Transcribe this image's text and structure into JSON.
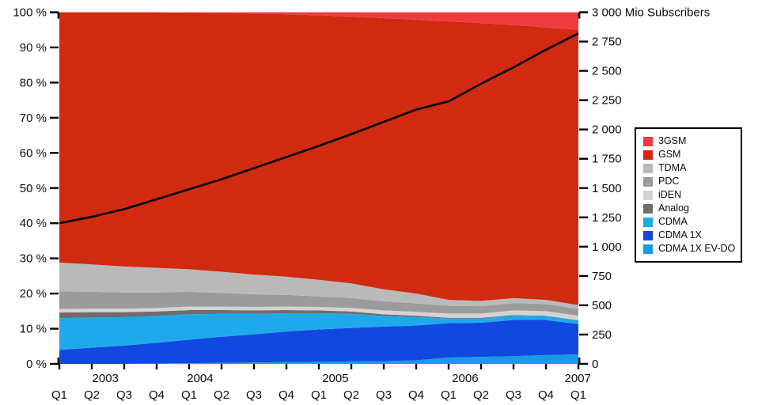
{
  "chart_data": {
    "type": "area",
    "stacked": true,
    "title": "",
    "x_quarter_labels": [
      "Q1",
      "Q2",
      "Q3",
      "Q4",
      "Q1",
      "Q2",
      "Q3",
      "Q4",
      "Q1",
      "Q2",
      "Q3",
      "Q4",
      "Q1",
      "Q2",
      "Q3",
      "Q4",
      "Q1"
    ],
    "x_year_labels": [
      {
        "label": "2003",
        "q": 1.42
      },
      {
        "label": "2004",
        "q": 4.34
      },
      {
        "label": "2005",
        "q": 8.51
      },
      {
        "label": "2006",
        "q": 12.51
      },
      {
        "label": "2007",
        "q": 15.98
      }
    ],
    "left_axis": {
      "min": 0,
      "max": 100,
      "tick_labels": [
        "0 %",
        "10 %",
        "20 %",
        "30 %",
        "40 %",
        "50 %",
        "60 %",
        "70 %",
        "80 %",
        "90 %",
        "100 %"
      ]
    },
    "right_axis": {
      "min": 0,
      "max": 3000,
      "tick_labels": [
        "0",
        "250",
        "500",
        "750",
        "1 000",
        "1 250",
        "1 500",
        "1 750",
        "2 000",
        "2 250",
        "2 500",
        "2 750"
      ],
      "top_label": "3 000 Mio Subscribers"
    },
    "series_stack_bottom_to_top": [
      {
        "name": "CDMA 1X EV-DO",
        "color": "#189ae4",
        "values": [
          0,
          0,
          0,
          0.1,
          0.2,
          0.3,
          0.4,
          0.5,
          0.6,
          0.7,
          0.8,
          1.0,
          1.8,
          2.0,
          2.2,
          2.5,
          2.7
        ]
      },
      {
        "name": "CDMA 1X",
        "color": "#1149e0",
        "values": [
          4.0,
          4.6,
          5.2,
          5.9,
          6.7,
          7.4,
          8.0,
          8.7,
          9.2,
          9.5,
          9.8,
          9.9,
          9.8,
          9.7,
          10.3,
          10.0,
          8.6
        ]
      },
      {
        "name": "CDMA",
        "color": "#1ea9ec",
        "values": [
          9.0,
          8.6,
          8.1,
          7.6,
          7.2,
          6.5,
          5.8,
          5.2,
          4.6,
          4.0,
          3.0,
          2.4,
          1.3,
          1.2,
          1.2,
          1.1,
          1.0
        ]
      },
      {
        "name": "Analog",
        "color": "#6e6e6e",
        "values": [
          1.6,
          1.5,
          1.4,
          1.3,
          1.2,
          1.1,
          1.0,
          0.9,
          0.8,
          0.7,
          0.5,
          0.4,
          0.2,
          0.2,
          0.2,
          0.1,
          0.1
        ]
      },
      {
        "name": "iDEN",
        "color": "#d3d3d3",
        "values": [
          1.0,
          1.0,
          1.0,
          1.0,
          1.0,
          1.0,
          1.0,
          1.0,
          1.0,
          1.0,
          1.1,
          1.1,
          1.2,
          1.2,
          1.3,
          1.3,
          1.3
        ]
      },
      {
        "name": "PDC",
        "color": "#9b9b9b",
        "values": [
          5.0,
          4.8,
          4.6,
          4.4,
          4.2,
          3.9,
          3.6,
          3.3,
          3.0,
          2.8,
          2.6,
          2.4,
          2.2,
          2.1,
          2.1,
          2.0,
          1.9
        ]
      },
      {
        "name": "TDMA",
        "color": "#b9b9b9",
        "values": [
          8.2,
          7.8,
          7.4,
          7.0,
          6.4,
          6.0,
          5.6,
          5.2,
          4.7,
          4.2,
          3.4,
          2.8,
          1.7,
          1.5,
          1.4,
          1.2,
          1.1
        ]
      },
      {
        "name": "GSM",
        "color": "#d02b10",
        "values": [
          71.2,
          71.7,
          72.3,
          72.7,
          73.0,
          73.6,
          74.2,
          74.6,
          75.2,
          75.9,
          77.1,
          77.9,
          79.2,
          79.0,
          77.7,
          77.5,
          78.3
        ]
      },
      {
        "name": "3GSM",
        "color": "#ef3b40",
        "values": [
          0,
          0,
          0,
          0,
          0.1,
          0.2,
          0.4,
          0.6,
          0.9,
          1.2,
          1.7,
          2.1,
          2.6,
          3.1,
          3.6,
          4.3,
          5.0
        ]
      }
    ],
    "line_series": {
      "name": "Total subscribers (Mio)",
      "color": "#000000",
      "axis": "right",
      "values": [
        1200,
        1255,
        1320,
        1405,
        1490,
        1575,
        1670,
        1765,
        1860,
        1960,
        2065,
        2170,
        2240,
        2390,
        2530,
        2680,
        2820
      ]
    },
    "legend": {
      "position": "right",
      "items": [
        "3GSM",
        "GSM",
        "TDMA",
        "PDC",
        "iDEN",
        "Analog",
        "CDMA",
        "CDMA 1X",
        "CDMA 1X EV-DO"
      ]
    },
    "grid": false
  }
}
